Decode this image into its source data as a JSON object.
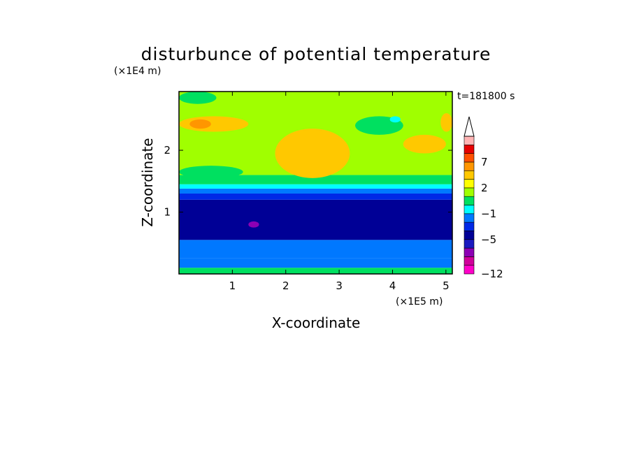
{
  "chart_data": {
    "type": "heatmap",
    "title": "disturbunce of potential temperature",
    "xlabel": "X-coordinate",
    "ylabel": "Z-coordinate",
    "x_unit": "(×1E5 m)",
    "y_unit": "(×1E4 m)",
    "time_label": "t=181800 s",
    "xlim": [
      0,
      5.12
    ],
    "ylim": [
      0,
      2.95
    ],
    "x_ticks": [
      1,
      2,
      3,
      4,
      5
    ],
    "x_tick_labels": [
      "1",
      "2",
      "3",
      "4",
      "5"
    ],
    "y_ticks": [
      1,
      2
    ],
    "y_tick_labels": [
      "1",
      "2"
    ],
    "colorbar": {
      "extend": "max",
      "levels": [
        -12,
        -11,
        -9,
        -7,
        -5,
        -4,
        -3,
        -1,
        0,
        1,
        2,
        3,
        5,
        7,
        8,
        9
      ],
      "tick_labels": [
        "7",
        "2",
        "−1",
        "−5",
        "−12"
      ],
      "tick_values": [
        7,
        2,
        -1,
        -5,
        -12
      ],
      "colors": [
        "#ff00c8",
        "#d0009a",
        "#8c00b4",
        "#1a1ac0",
        "#000096",
        "#0028e6",
        "#0078ff",
        "#00ffff",
        "#00e060",
        "#a0ff00",
        "#ffff00",
        "#ffc800",
        "#ff9600",
        "#ff5000",
        "#e60000",
        "#ffb4b4",
        "#ffffff"
      ]
    },
    "bands": [
      {
        "z_from": 0.0,
        "z_to": 0.1,
        "value": 0.5
      },
      {
        "z_from": 0.1,
        "z_to": 0.25,
        "value": -2
      },
      {
        "z_from": 0.25,
        "z_to": 0.55,
        "value": -1.5
      },
      {
        "z_from": 0.55,
        "z_to": 1.2,
        "value": -5
      },
      {
        "z_from": 1.2,
        "z_to": 1.3,
        "value": -4
      },
      {
        "z_from": 1.3,
        "z_to": 1.38,
        "value": -3
      },
      {
        "z_from": 1.38,
        "z_to": 1.45,
        "value": -0.5
      },
      {
        "z_from": 1.45,
        "z_to": 1.6,
        "value": 0.5
      },
      {
        "z_from": 1.6,
        "z_to": 2.95,
        "value": 1.5
      }
    ],
    "features": [
      {
        "x": [
          0.0,
          1.3
        ],
        "z": [
          2.3,
          2.55
        ],
        "value": 3
      },
      {
        "x": [
          0.2,
          0.6
        ],
        "z": [
          2.35,
          2.5
        ],
        "value": 5
      },
      {
        "x": [
          4.2,
          5.0
        ],
        "z": [
          1.95,
          2.25
        ],
        "value": 3
      },
      {
        "x": [
          3.3,
          4.2
        ],
        "z": [
          2.25,
          2.55
        ],
        "value": 0.5
      },
      {
        "x": [
          3.95,
          4.15
        ],
        "z": [
          2.45,
          2.55
        ],
        "value": -0.5
      },
      {
        "x": [
          0.0,
          0.7
        ],
        "z": [
          2.75,
          2.95
        ],
        "value": 0.5
      },
      {
        "x": [
          4.9,
          5.12
        ],
        "z": [
          2.3,
          2.6
        ],
        "value": 3
      },
      {
        "x": [
          1.8,
          3.2
        ],
        "z": [
          1.55,
          2.35
        ],
        "value": 3
      },
      {
        "x": [
          0.0,
          1.2
        ],
        "z": [
          1.55,
          1.75
        ],
        "value": 0.5
      },
      {
        "x": [
          1.3,
          1.5
        ],
        "z": [
          0.75,
          0.85
        ],
        "value": -9
      }
    ]
  }
}
